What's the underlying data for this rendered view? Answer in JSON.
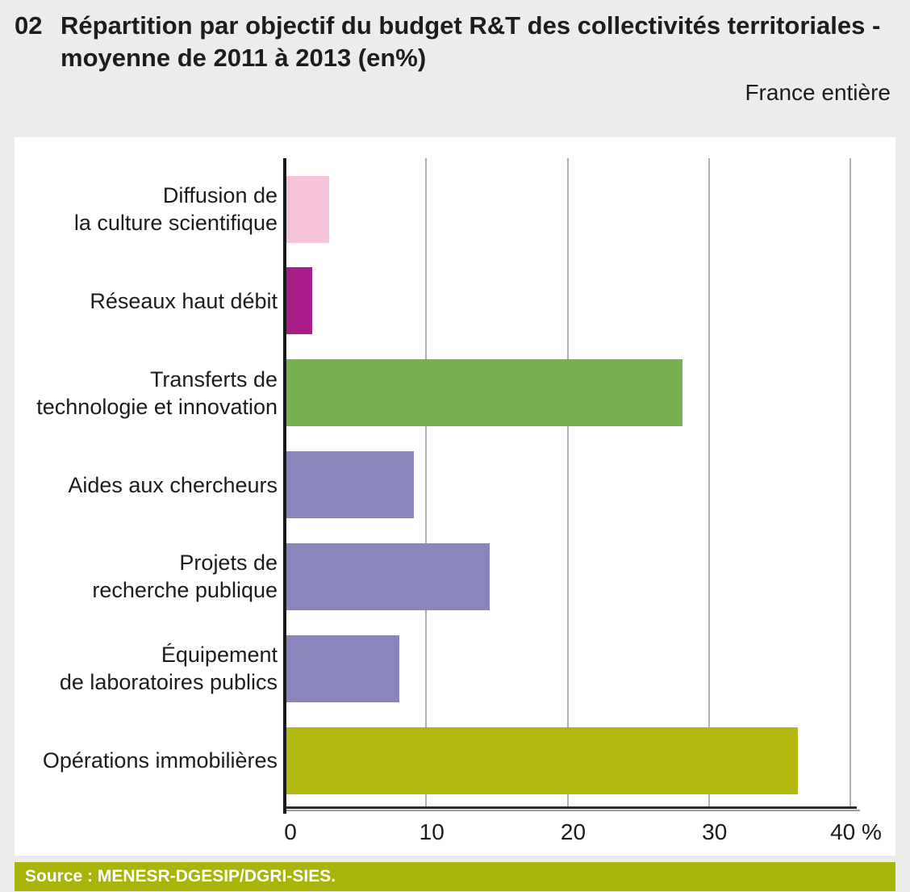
{
  "header": {
    "number": "02",
    "title_line1": "Répartition par objectif du budget R&T des collectivités territoriales -",
    "title_line2": "moyenne de 2011 à 2013 (en%)",
    "region_label": "France entière"
  },
  "chart_data": {
    "type": "bar",
    "orientation": "horizontal",
    "title": "Répartition par objectif du budget R&T des collectivités territoriales - moyenne de 2011 à 2013 (en%)",
    "unit": "%",
    "categories": [
      "Diffusion de\nla culture scientifique",
      "Réseaux haut débit",
      "Transferts de\ntechnologie et innovation",
      "Aides aux chercheurs",
      "Projets de\nrecherche publique",
      "Équipement\nde laboratoires publics",
      "Opérations immobilières"
    ],
    "values": [
      3,
      1.8,
      28,
      9,
      14.4,
      8,
      36.2
    ],
    "colors": [
      "#f5c3da",
      "#a81d87",
      "#78b150",
      "#8a86bd",
      "#8a86bd",
      "#8a86bd",
      "#b2b80f"
    ],
    "xlim": [
      0,
      40
    ],
    "xticks": [
      0,
      10,
      20,
      30,
      40
    ],
    "xtick_labels": [
      "0",
      "10",
      "20",
      "30",
      "40 %"
    ],
    "grid": true,
    "legend": "none"
  },
  "footer": {
    "source_text": "Source : MENESR-DGESIP/DGRI-SIES.",
    "source_bg": "#a9b408"
  }
}
